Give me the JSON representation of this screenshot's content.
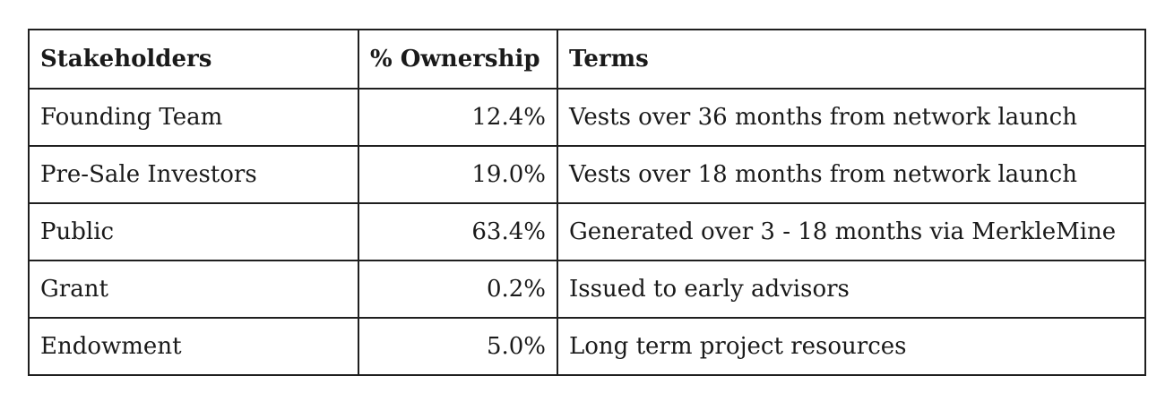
{
  "table": {
    "headers": [
      "Stakeholders",
      "% Ownership",
      "Terms"
    ],
    "rows": [
      {
        "stakeholder": "Founding Team",
        "ownership": "12.4%",
        "terms": "Vests over 36 months from network launch"
      },
      {
        "stakeholder": "Pre-Sale Investors",
        "ownership": "19.0%",
        "terms": "Vests over 18 months from network launch"
      },
      {
        "stakeholder": "Public",
        "ownership": "63.4%",
        "terms": "Generated over 3 - 18 months via MerkleMine"
      },
      {
        "stakeholder": "Grant",
        "ownership": "0.2%",
        "terms": "Issued to early advisors"
      },
      {
        "stakeholder": "Endowment",
        "ownership": "5.0%",
        "terms": "Long term project resources"
      }
    ]
  }
}
